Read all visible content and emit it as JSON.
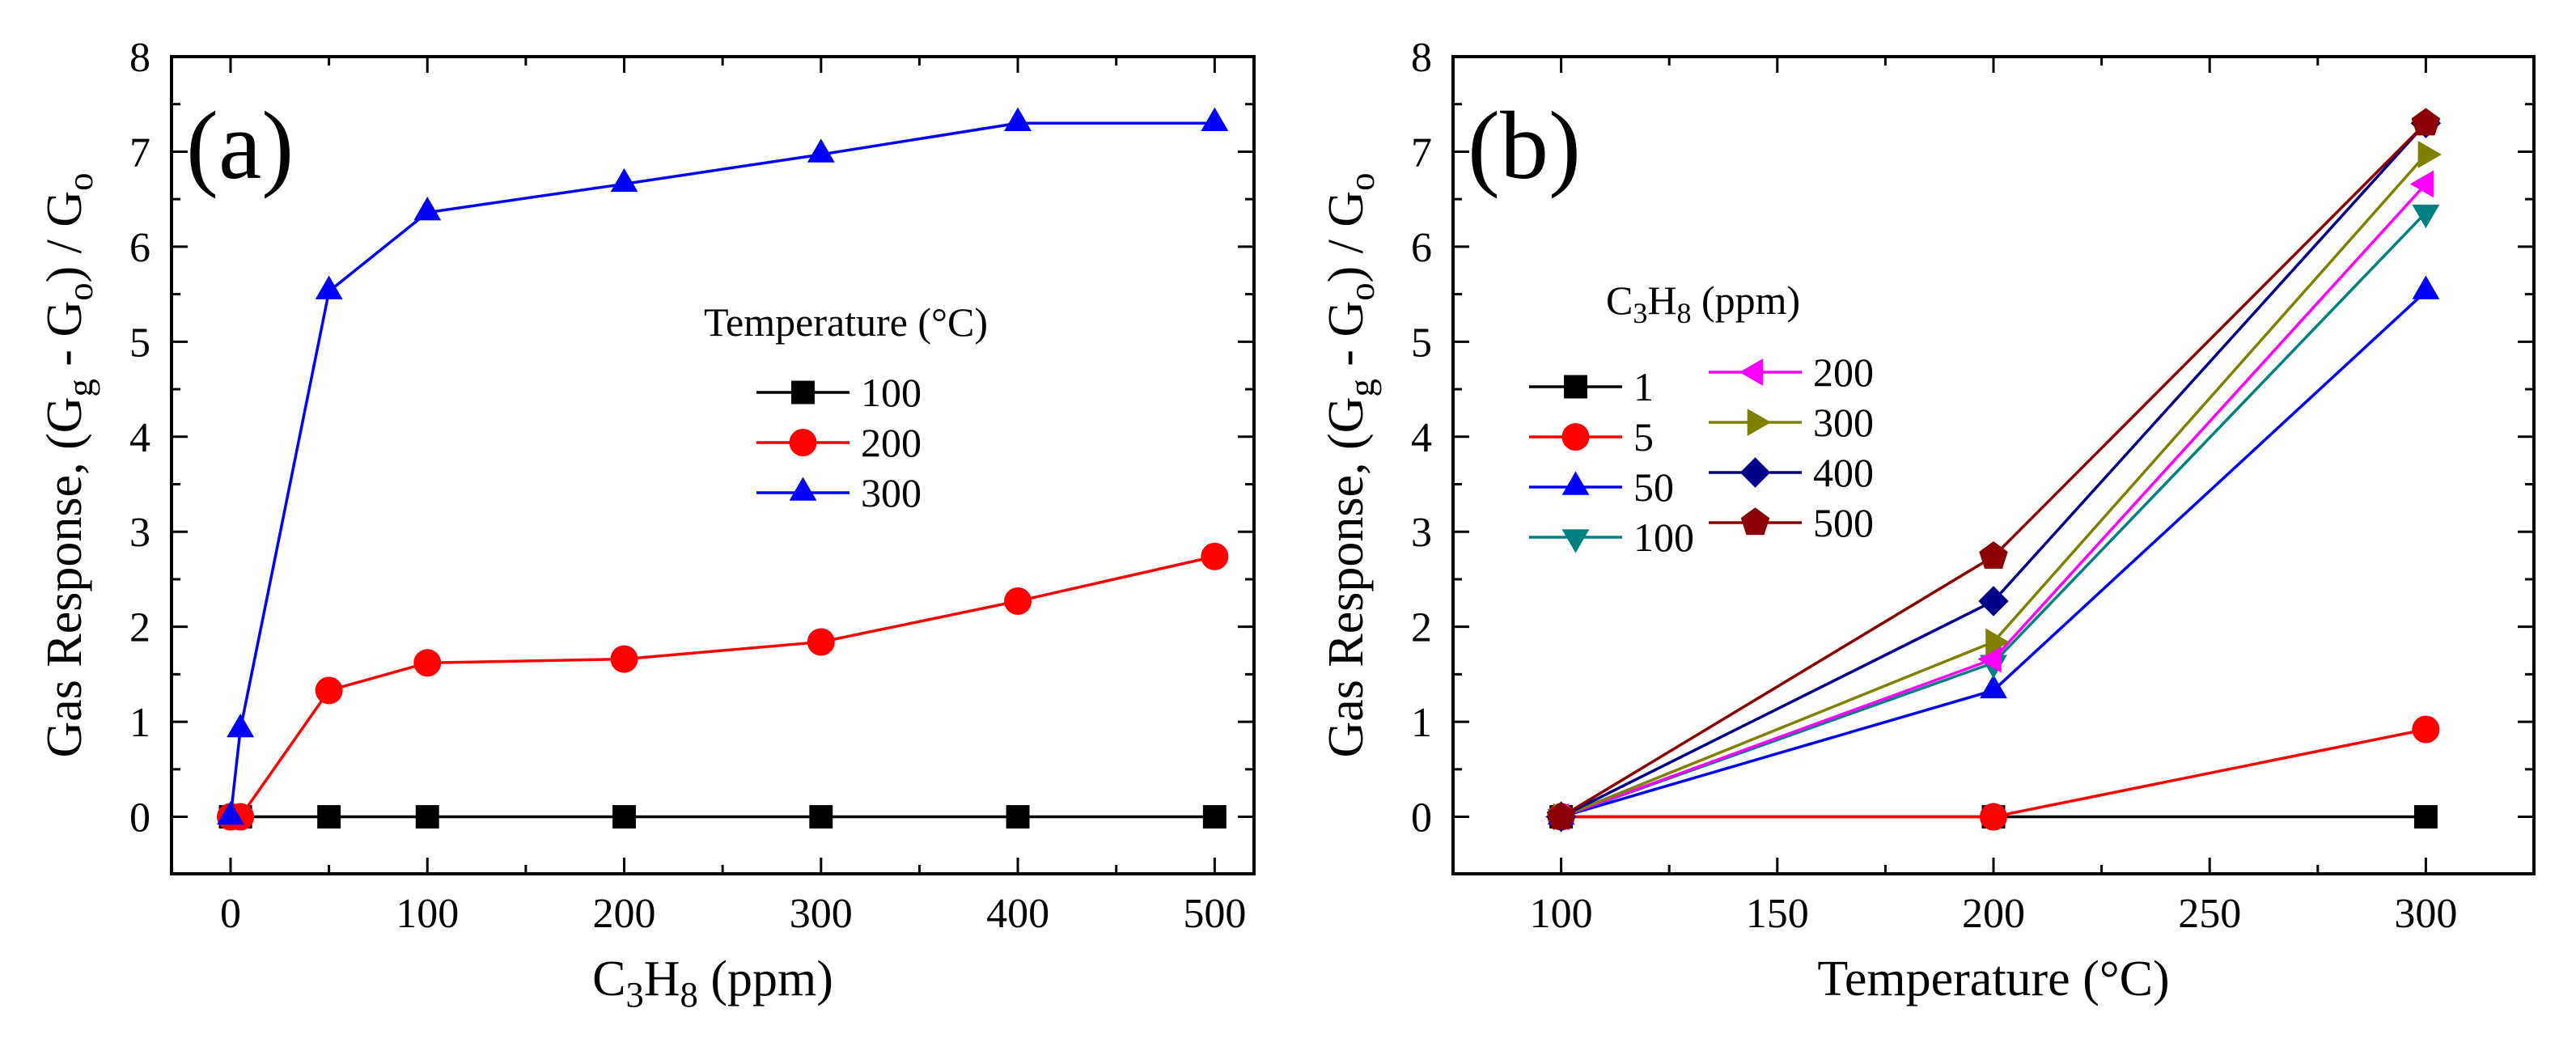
{
  "chart_data": [
    {
      "type": "line",
      "panel_label": "(a)",
      "xlabel_parts": [
        "C",
        "3",
        "H",
        "8",
        " (ppm)"
      ],
      "ylabel_parts": [
        "Gas Response, (G",
        "g",
        " - G",
        "o",
        ") / G",
        "o"
      ],
      "xlim": [
        -30,
        520
      ],
      "ylim": [
        -0.6,
        8
      ],
      "xticks": [
        0,
        100,
        200,
        300,
        400,
        500
      ],
      "yticks": [
        0,
        1,
        2,
        3,
        4,
        5,
        6,
        7,
        8
      ],
      "x": [
        0,
        5,
        50,
        100,
        200,
        300,
        400,
        500
      ],
      "legend_title": "Temperature (°C)",
      "legend_position": "center-right",
      "series": [
        {
          "name": "100",
          "marker": "square",
          "color": "#000000",
          "values": [
            0,
            0,
            0,
            0,
            0,
            0,
            0,
            0
          ]
        },
        {
          "name": "200",
          "marker": "circle",
          "color": "#ff0000",
          "values": [
            0,
            0,
            1.33,
            1.62,
            1.66,
            1.84,
            2.27,
            2.74
          ]
        },
        {
          "name": "300",
          "marker": "triangle-up",
          "color": "#0000ff",
          "values": [
            0,
            0.92,
            5.53,
            6.36,
            6.66,
            6.97,
            7.3,
            7.3
          ]
        }
      ]
    },
    {
      "type": "line",
      "panel_label": "(b)",
      "xlabel_parts": [
        "Temperature (°C)"
      ],
      "ylabel_parts": [
        "Gas Response, (G",
        "g",
        " - G",
        "o",
        ") / G",
        "o"
      ],
      "xlim": [
        75,
        325
      ],
      "ylim": [
        -0.6,
        8
      ],
      "xticks": [
        100,
        150,
        200,
        250,
        300
      ],
      "yticks": [
        0,
        1,
        2,
        3,
        4,
        5,
        6,
        7,
        8
      ],
      "x": [
        100,
        200,
        300
      ],
      "legend_title_parts": [
        "C",
        "3",
        "H",
        "8",
        " (ppm)"
      ],
      "legend_position": "center-left",
      "series": [
        {
          "name": "1",
          "marker": "square",
          "color": "#000000",
          "values": [
            0,
            0,
            0
          ]
        },
        {
          "name": "5",
          "marker": "circle",
          "color": "#ff0000",
          "values": [
            0,
            0,
            0.92
          ]
        },
        {
          "name": "50",
          "marker": "triangle-up",
          "color": "#0000ff",
          "values": [
            0,
            1.33,
            5.53
          ]
        },
        {
          "name": "100",
          "marker": "triangle-down",
          "color": "#008080",
          "values": [
            0,
            1.62,
            6.36
          ]
        },
        {
          "name": "200",
          "marker": "triangle-left",
          "color": "#ff00ff",
          "values": [
            0,
            1.66,
            6.66
          ]
        },
        {
          "name": "300",
          "marker": "triangle-right",
          "color": "#808000",
          "values": [
            0,
            1.84,
            6.97
          ]
        },
        {
          "name": "400",
          "marker": "diamond",
          "color": "#00008b",
          "values": [
            0,
            2.27,
            7.3
          ]
        },
        {
          "name": "500",
          "marker": "pentagon",
          "color": "#8b0000",
          "values": [
            0,
            2.74,
            7.3
          ]
        }
      ]
    }
  ]
}
